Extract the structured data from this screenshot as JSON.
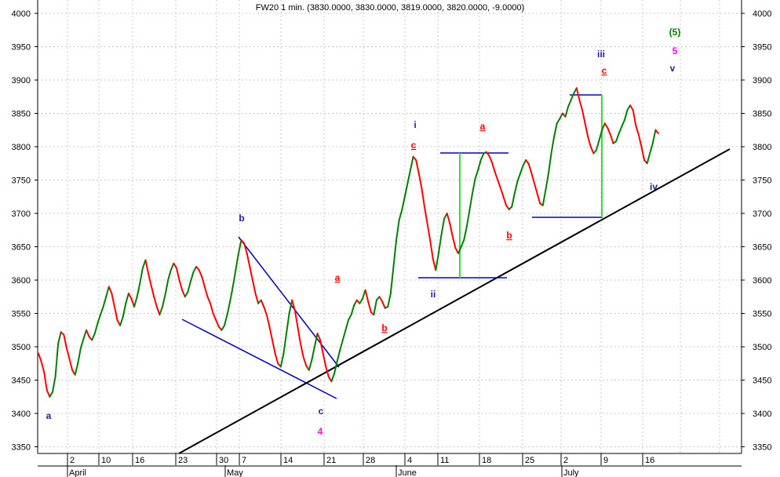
{
  "chart_data": {
    "type": "line",
    "title": "FW20 1 min. (3830.0000, 3830.0000, 3819.0000, 3820.0000, -9.0000)",
    "ylim": [
      3340,
      4020
    ],
    "y_ticks": [
      3350,
      3400,
      3450,
      3500,
      3550,
      3600,
      3650,
      3700,
      3750,
      3800,
      3850,
      3900,
      3950,
      4000
    ],
    "x_day_ticks": [
      "2",
      "10",
      "16",
      "23",
      "30",
      "7",
      "14",
      "21",
      "28",
      "4",
      "11",
      "18",
      "25",
      "2",
      "9",
      "16"
    ],
    "x_month_labels": [
      "April",
      "May",
      "June",
      "July"
    ],
    "up_color": "#008000",
    "down_color": "#ff0000",
    "series": [
      {
        "values": [
          3490,
          3478,
          3462,
          3435,
          3425,
          3432,
          3455,
          3505,
          3522,
          3518,
          3498,
          3482,
          3465,
          3458,
          3475,
          3498,
          3512,
          3525,
          3515,
          3510,
          3520,
          3535,
          3548,
          3560,
          3575,
          3590,
          3580,
          3560,
          3540,
          3532,
          3545,
          3565,
          3580,
          3572,
          3560,
          3575,
          3595,
          3618,
          3630,
          3610,
          3592,
          3575,
          3560,
          3548,
          3560,
          3578,
          3600,
          3615,
          3625,
          3618,
          3600,
          3585,
          3575,
          3582,
          3598,
          3612,
          3620,
          3615,
          3605,
          3590,
          3575,
          3565,
          3550,
          3540,
          3530,
          3525,
          3532,
          3548,
          3568,
          3590,
          3615,
          3640,
          3660,
          3655,
          3640,
          3620,
          3600,
          3580,
          3565,
          3570,
          3560,
          3548,
          3530,
          3510,
          3490,
          3475,
          3470,
          3490,
          3520,
          3550,
          3570,
          3555,
          3530,
          3505,
          3485,
          3472,
          3465,
          3480,
          3500,
          3520,
          3510,
          3490,
          3470,
          3455,
          3448,
          3460,
          3478,
          3495,
          3510,
          3525,
          3540,
          3548,
          3562,
          3570,
          3565,
          3572,
          3585,
          3568,
          3552,
          3548,
          3570,
          3575,
          3568,
          3558,
          3560,
          3580,
          3620,
          3660,
          3690,
          3705,
          3725,
          3745,
          3765,
          3785,
          3780,
          3760,
          3738,
          3710,
          3685,
          3660,
          3632,
          3615,
          3640,
          3668,
          3692,
          3700,
          3685,
          3665,
          3648,
          3640,
          3650,
          3660,
          3680,
          3705,
          3730,
          3752,
          3765,
          3780,
          3790,
          3792,
          3786,
          3776,
          3762,
          3750,
          3738,
          3725,
          3712,
          3706,
          3710,
          3730,
          3748,
          3760,
          3772,
          3780,
          3774,
          3760,
          3745,
          3730,
          3715,
          3712,
          3735,
          3760,
          3790,
          3815,
          3835,
          3842,
          3850,
          3845,
          3860,
          3870,
          3880,
          3888,
          3870,
          3855,
          3835,
          3815,
          3800,
          3790,
          3795,
          3810,
          3825,
          3835,
          3828,
          3818,
          3805,
          3808,
          3820,
          3830,
          3840,
          3855,
          3862,
          3855,
          3832,
          3818,
          3800,
          3780,
          3775,
          3790,
          3805,
          3825,
          3820
        ]
      }
    ],
    "wave_labels": [
      {
        "text": "a",
        "color": "#1f1f9f"
      },
      {
        "text": "b",
        "color": "#1f1f9f"
      },
      {
        "text": "c",
        "color": "#1f1f9f"
      },
      {
        "text": "4",
        "color": "#ff00ff"
      },
      {
        "text": "a",
        "color": "#ff0000"
      },
      {
        "text": "b",
        "color": "#ff0000"
      },
      {
        "text": "c",
        "color": "#ff0000"
      },
      {
        "text": "i",
        "color": "#1f1f9f"
      },
      {
        "text": "ii",
        "color": "#1f1f9f"
      },
      {
        "text": "a",
        "color": "#ff0000"
      },
      {
        "text": "b",
        "color": "#ff0000"
      },
      {
        "text": "iii",
        "color": "#1f1f9f"
      },
      {
        "text": "c",
        "color": "#ff0000"
      },
      {
        "text": "iv",
        "color": "#1f1f9f"
      },
      {
        "text": "(5)",
        "color": "#008000"
      },
      {
        "text": "5",
        "color": "#ff00ff"
      },
      {
        "text": "v",
        "color": "#1f1f9f"
      }
    ]
  }
}
